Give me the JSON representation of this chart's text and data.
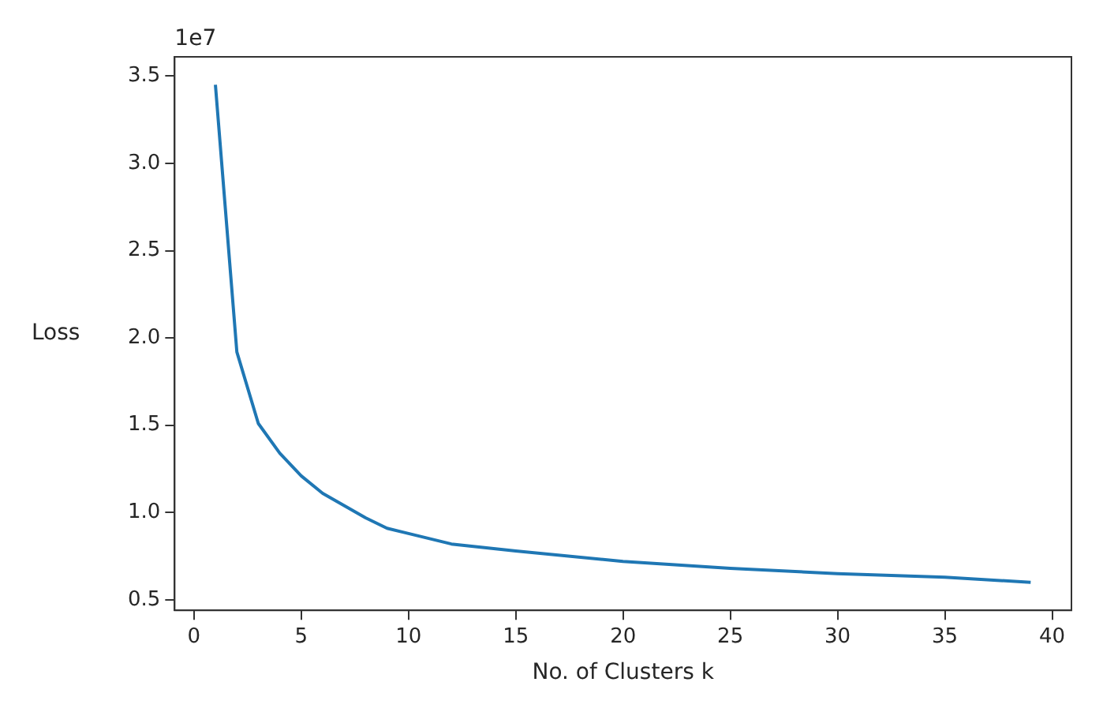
{
  "chart_data": {
    "type": "line",
    "xlabel": "No. of Clusters k",
    "ylabel": "Loss",
    "annotations": [
      "1e7"
    ],
    "x": [
      1,
      2,
      3,
      4,
      5,
      6,
      7,
      8,
      9,
      10,
      12,
      15,
      20,
      25,
      30,
      35,
      39
    ],
    "series": [
      {
        "color": "#1f77b4",
        "values": [
          3.45,
          1.92,
          1.51,
          1.34,
          1.21,
          1.11,
          1.04,
          0.97,
          0.91,
          0.88,
          0.82,
          0.78,
          0.72,
          0.68,
          0.65,
          0.63,
          0.6
        ]
      }
    ],
    "xlim": [
      -0.9,
      40.9
    ],
    "xticks": [
      0,
      5,
      10,
      15,
      20,
      25,
      30,
      35,
      40
    ],
    "ylim": [
      0.44,
      3.61
    ],
    "yticks": [
      0.5,
      {
        "value": 1,
        "label": "1.0"
      },
      1.5,
      {
        "value": 2,
        "label": "2.0"
      },
      2.5,
      {
        "value": 3,
        "label": "3.0"
      },
      3.5
    ],
    "grid": false,
    "legend": false,
    "marker": "none",
    "line_style": "solid"
  }
}
